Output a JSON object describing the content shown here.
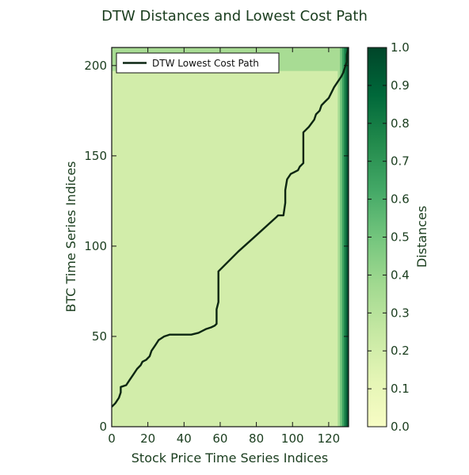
{
  "chart_data": {
    "type": "heatmap",
    "title": "DTW Distances and Lowest Cost Path",
    "xlabel": "Stock Price Time Series Indices",
    "ylabel": "BTC Time Series Indices",
    "xlim": [
      0,
      131
    ],
    "ylim": [
      0,
      210
    ],
    "x_ticks": [
      "0",
      "20",
      "40",
      "60",
      "80",
      "100",
      "120"
    ],
    "y_ticks": [
      "0",
      "50",
      "100",
      "150",
      "200"
    ],
    "colorbar": {
      "label": "Distances",
      "range": [
        0.0,
        1.0
      ],
      "ticks": [
        "0.0",
        "0.1",
        "0.2",
        "0.3",
        "0.4",
        "0.5",
        "0.6",
        "0.7",
        "0.8",
        "0.9",
        "1.0"
      ],
      "colormap": [
        "#f7fcc4",
        "#e4f5b5",
        "#c6e8a3",
        "#a1d990",
        "#73c57d",
        "#43a866",
        "#228a4c",
        "#00683a",
        "#004529"
      ]
    },
    "heatmap_description": {
      "background_level": 0.2,
      "high_top_row_band": [
        197,
        210
      ],
      "high_right_column_band": [
        125,
        131
      ]
    },
    "series": [
      {
        "name": "DTW Lowest Cost Path",
        "color": "#0b2612",
        "points": [
          [
            0,
            11
          ],
          [
            2,
            13
          ],
          [
            4,
            16
          ],
          [
            5,
            19
          ],
          [
            5,
            22
          ],
          [
            8,
            23
          ],
          [
            10,
            26
          ],
          [
            12,
            29
          ],
          [
            14,
            32
          ],
          [
            16,
            34
          ],
          [
            17,
            36
          ],
          [
            19,
            37
          ],
          [
            21,
            39
          ],
          [
            22,
            42
          ],
          [
            24,
            45
          ],
          [
            26,
            48
          ],
          [
            29,
            50
          ],
          [
            32,
            51
          ],
          [
            38,
            51
          ],
          [
            44,
            51
          ],
          [
            48,
            52
          ],
          [
            52,
            54
          ],
          [
            55,
            55
          ],
          [
            57,
            56
          ],
          [
            58,
            57
          ],
          [
            58,
            65
          ],
          [
            59,
            69
          ],
          [
            59,
            86
          ],
          [
            70,
            97
          ],
          [
            80,
            106
          ],
          [
            91,
            116
          ],
          [
            92,
            117
          ],
          [
            95,
            117
          ],
          [
            96,
            124
          ],
          [
            96,
            131
          ],
          [
            97,
            137
          ],
          [
            99,
            140
          ],
          [
            101,
            141
          ],
          [
            103,
            142
          ],
          [
            104,
            144
          ],
          [
            106,
            146
          ],
          [
            106,
            154
          ],
          [
            106,
            163
          ],
          [
            109,
            166
          ],
          [
            112,
            170
          ],
          [
            113,
            173
          ],
          [
            115,
            175
          ],
          [
            116,
            178
          ],
          [
            118,
            180
          ],
          [
            120,
            182
          ],
          [
            121,
            184
          ],
          [
            123,
            188
          ],
          [
            125,
            191
          ],
          [
            127,
            194
          ],
          [
            128,
            196
          ],
          [
            129,
            199
          ],
          [
            130,
            202
          ],
          [
            130,
            206
          ],
          [
            131,
            210
          ]
        ]
      }
    ],
    "legend": {
      "placement": "top-left",
      "entries": [
        "DTW Lowest Cost Path"
      ]
    },
    "grid": false
  }
}
